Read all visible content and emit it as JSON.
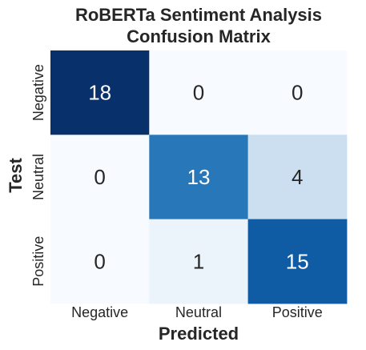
{
  "chart_data": {
    "type": "heatmap",
    "title_lines": [
      "RoBERTa Sentiment Analysis",
      "Confusion Matrix"
    ],
    "xlabel": "Predicted",
    "ylabel": "Test",
    "x_categories": [
      "Negative",
      "Neutral",
      "Positive"
    ],
    "y_categories": [
      "Negative",
      "Neutral",
      "Positive"
    ],
    "values": [
      [
        18,
        0,
        0
      ],
      [
        0,
        13,
        4
      ],
      [
        0,
        1,
        15
      ]
    ],
    "colormap": "Blues",
    "vmin": 0,
    "vmax": 18,
    "colorbar": false
  }
}
